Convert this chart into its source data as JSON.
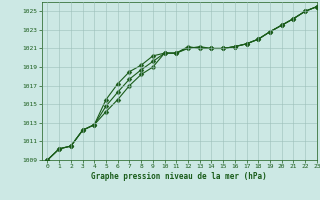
{
  "title": "Graphe pression niveau de la mer (hPa)",
  "xlim": [
    -0.5,
    23
  ],
  "ylim": [
    1009,
    1026
  ],
  "xticks": [
    0,
    1,
    2,
    3,
    4,
    5,
    6,
    7,
    8,
    9,
    10,
    11,
    12,
    13,
    14,
    15,
    16,
    17,
    18,
    19,
    20,
    21,
    22,
    23
  ],
  "yticks": [
    1009,
    1011,
    1013,
    1015,
    1017,
    1019,
    1021,
    1023,
    1025
  ],
  "background_color": "#cce8e4",
  "grid_color": "#9dbfba",
  "line_color": "#1a5c1a",
  "line_width": 0.8,
  "marker_size": 2.5,
  "series": [
    [
      1009.0,
      1010.2,
      1010.5,
      1012.2,
      1012.8,
      1014.2,
      1015.5,
      1017.0,
      1018.2,
      1019.0,
      1020.5,
      1020.5,
      1021.0,
      1021.2,
      1021.0,
      1021.0,
      1021.2,
      1021.5,
      1022.0,
      1022.8,
      1023.5,
      1024.2,
      1025.0,
      1025.5
    ],
    [
      1009.0,
      1010.2,
      1010.5,
      1012.2,
      1012.8,
      1015.5,
      1017.2,
      1018.5,
      1019.2,
      1020.2,
      1020.5,
      1020.5,
      1021.2,
      1021.0,
      1021.0,
      1021.0,
      1021.2,
      1021.5,
      1022.0,
      1022.8,
      1023.5,
      1024.2,
      1025.0,
      1025.5
    ],
    [
      1009.0,
      1010.2,
      1010.5,
      1012.2,
      1012.8,
      1014.8,
      1016.3,
      1017.7,
      1018.7,
      1019.6,
      1020.5,
      1020.5,
      1021.1,
      1021.1,
      1021.0,
      1021.0,
      1021.2,
      1021.5,
      1022.0,
      1022.8,
      1023.5,
      1024.2,
      1025.0,
      1025.5
    ]
  ]
}
